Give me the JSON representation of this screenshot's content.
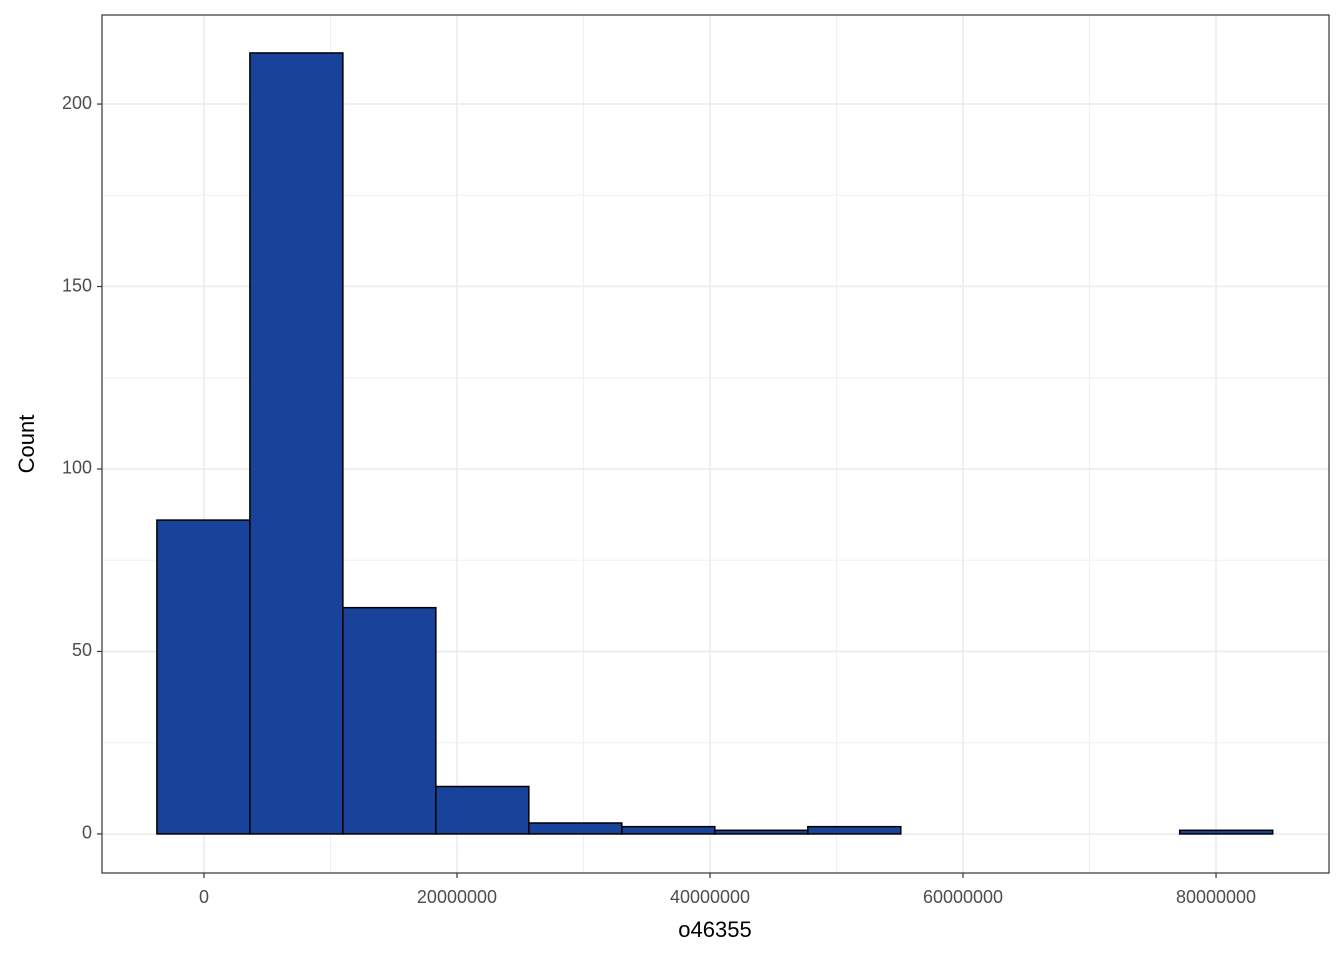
{
  "chart_data": {
    "type": "histogram",
    "x_label": "o46355",
    "y_label": "Count",
    "bins": [
      -3720000,
      3630000,
      10980000,
      18330000,
      25680000,
      33030000,
      40380000,
      47730000,
      55080000,
      62430000,
      69780000,
      77130000,
      84480000
    ],
    "values": [
      86,
      214,
      62,
      13,
      3,
      2,
      1,
      2,
      0,
      0,
      0,
      1
    ],
    "color": "#19439a",
    "xlim": [
      -8060000,
      88930000
    ],
    "xticks": [
      0,
      20000000,
      40000000,
      60000000,
      80000000
    ],
    "ylim": [
      -10.7,
      224.4
    ],
    "yticks": [
      0,
      50,
      100,
      150,
      200
    ],
    "grid": true
  }
}
